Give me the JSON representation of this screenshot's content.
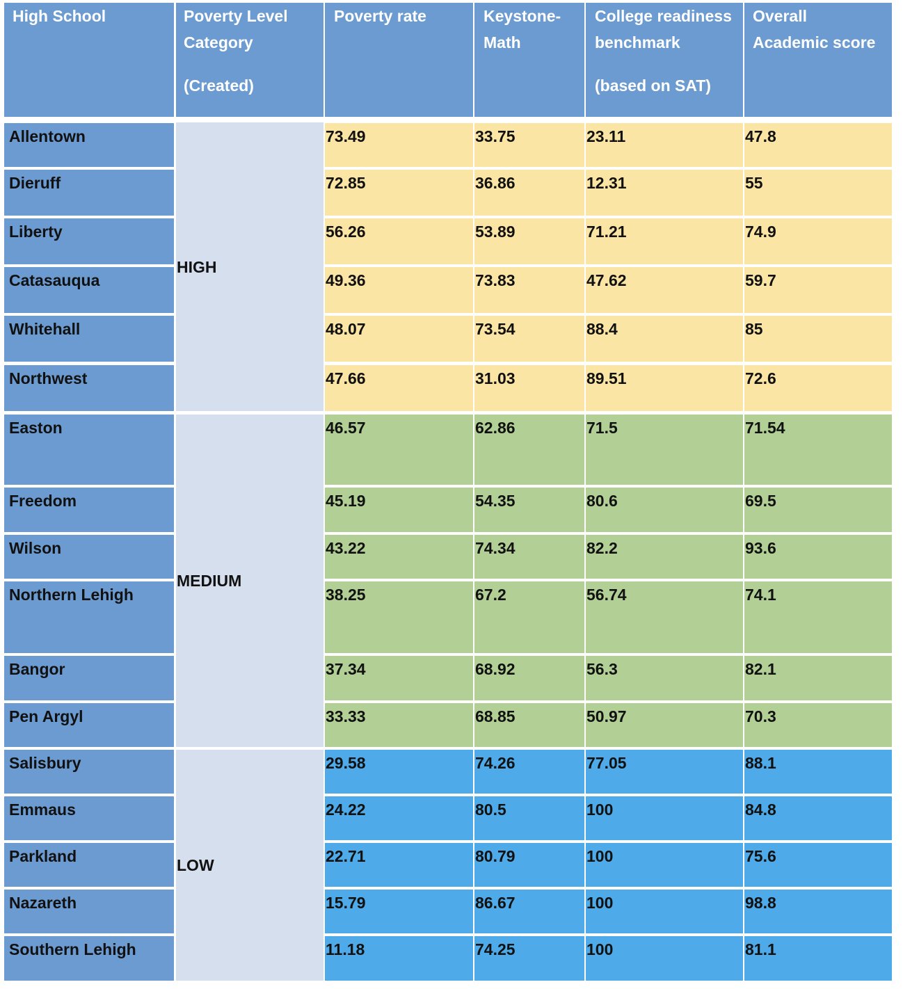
{
  "colors": {
    "header_bg": "#6b9bd1",
    "school_bg": "#6b9bd1",
    "category_bg": "#d6dfed",
    "high_bg": "#fbe5a4",
    "medium_bg": "#b2d096",
    "low_bg": "#4eaae8"
  },
  "headers": [
    {
      "lines": [
        "High School"
      ]
    },
    {
      "lines": [
        "Poverty Level",
        "Category",
        "",
        "(Created)"
      ]
    },
    {
      "lines": [
        "Poverty rate"
      ]
    },
    {
      "lines": [
        "Keystone-",
        "Math"
      ]
    },
    {
      "lines": [
        "College readiness",
        "benchmark",
        "",
        "(based on SAT)"
      ]
    },
    {
      "lines": [
        "Overall",
        "Academic score"
      ]
    }
  ],
  "groups": [
    {
      "category": "HIGH",
      "color_key": "high_bg",
      "rows": [
        {
          "school": "Allentown",
          "poverty_rate": "73.49",
          "keystone_math": "33.75",
          "college_readiness": "23.11",
          "overall": "47.8"
        },
        {
          "school": "Dieruff",
          "poverty_rate": "72.85",
          "keystone_math": "36.86",
          "college_readiness": "12.31",
          "overall": "55"
        },
        {
          "school": "Liberty",
          "poverty_rate": "56.26",
          "keystone_math": "53.89",
          "college_readiness": "71.21",
          "overall": "74.9"
        },
        {
          "school": "Catasauqua",
          "poverty_rate": "49.36",
          "keystone_math": "73.83",
          "college_readiness": "47.62",
          "overall": "59.7"
        },
        {
          "school": "Whitehall",
          "poverty_rate": "48.07",
          "keystone_math": "73.54",
          "college_readiness": "88.4",
          "overall": "85"
        },
        {
          "school": "Northwest",
          "poverty_rate": "47.66",
          "keystone_math": "31.03",
          "college_readiness": "89.51",
          "overall": "72.6"
        }
      ]
    },
    {
      "category": "MEDIUM",
      "color_key": "medium_bg",
      "rows": [
        {
          "school": "Easton",
          "poverty_rate": "46.57",
          "keystone_math": "62.86",
          "college_readiness": "71.5",
          "overall": "71.54"
        },
        {
          "school": "Freedom",
          "poverty_rate": "45.19",
          "keystone_math": "54.35",
          "college_readiness": "80.6",
          "overall": "69.5"
        },
        {
          "school": "Wilson",
          "poverty_rate": "43.22",
          "keystone_math": "74.34",
          "college_readiness": "82.2",
          "overall": "93.6"
        },
        {
          "school": "Northern Lehigh",
          "poverty_rate": "38.25",
          "keystone_math": "67.2",
          "college_readiness": "56.74",
          "overall": "74.1"
        },
        {
          "school": "Bangor",
          "poverty_rate": "37.34",
          "keystone_math": "68.92",
          "college_readiness": "56.3",
          "overall": "82.1"
        },
        {
          "school": "Pen Argyl",
          "poverty_rate": "33.33",
          "keystone_math": "68.85",
          "college_readiness": "50.97",
          "overall": "70.3"
        }
      ]
    },
    {
      "category": "LOW",
      "color_key": "low_bg",
      "rows": [
        {
          "school": "Salisbury",
          "poverty_rate": "29.58",
          "keystone_math": "74.26",
          "college_readiness": "77.05",
          "overall": "88.1"
        },
        {
          "school": "Emmaus",
          "poverty_rate": "24.22",
          "keystone_math": "80.5",
          "college_readiness": "100",
          "overall": "84.8"
        },
        {
          "school": "Parkland",
          "poverty_rate": "22.71",
          "keystone_math": "80.79",
          "college_readiness": "100",
          "overall": "75.6"
        },
        {
          "school": "Nazareth",
          "poverty_rate": "15.79",
          "keystone_math": "86.67",
          "college_readiness": "100",
          "overall": "98.8"
        },
        {
          "school": "Southern Lehigh",
          "poverty_rate": "11.18",
          "keystone_math": "74.25",
          "college_readiness": "100",
          "overall": "81.1"
        }
      ]
    }
  ]
}
